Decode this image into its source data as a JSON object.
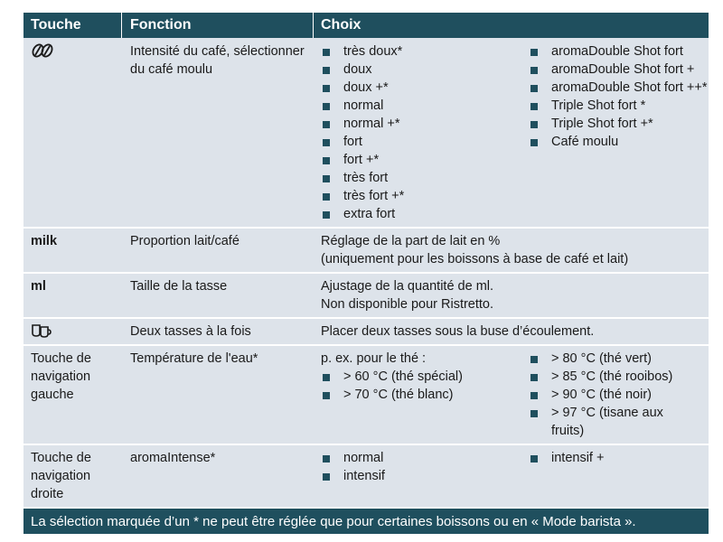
{
  "headers": {
    "key": "Touche",
    "function": "Fonction",
    "choice": "Choix"
  },
  "rows": {
    "strength": {
      "key_icon": "coffee-beans-icon",
      "function": "Intensité du café, sélectionner du café moulu",
      "choices_left": [
        "très doux*",
        "doux",
        "doux +*",
        "normal",
        "normal +*",
        "fort",
        "fort +*",
        "très fort",
        "très fort +*",
        "extra fort"
      ],
      "choices_right": [
        "aromaDouble Shot fort",
        "aromaDouble Shot fort +",
        "aromaDouble Shot fort ++*",
        "Triple Shot fort *",
        "Triple Shot fort +*",
        "Café moulu"
      ]
    },
    "milk": {
      "key": "milk",
      "function": "Proportion lait/café",
      "choice_line1": "Réglage de la part de lait en %",
      "choice_line2": "(uniquement pour les boissons à base de café et lait)"
    },
    "ml": {
      "key": "ml",
      "function": "Taille de la tasse",
      "choice_line1": "Ajustage de la quantité de ml.",
      "choice_line2": "Non disponible pour Ristretto."
    },
    "two_cups": {
      "key_icon": "two-cups-icon",
      "function": "Deux tasses à la fois",
      "choice": "Placer deux tasses sous la buse d’écoulement."
    },
    "nav_left": {
      "key": "Touche de navigation gauche",
      "function": "Température de l'eau*",
      "choice_intro": "p. ex. pour le thé :",
      "choices_left": [
        "> 60 °C (thé spécial)",
        "> 70 °C (thé blanc)"
      ],
      "choices_right": [
        "> 80 °C (thé vert)",
        "> 85 °C (thé rooibos)",
        "> 90 °C (thé noir)",
        "> 97 °C (tisane aux fruits)"
      ]
    },
    "nav_right": {
      "key": "Touche de navigation droite",
      "function": "aromaIntense*",
      "choices_left": [
        "normal",
        "intensif"
      ],
      "choices_right": [
        "intensif +"
      ]
    }
  },
  "footer": "La sélection marquée d’un * ne peut être réglée que pour certaines boissons ou en « Mode barista ».",
  "colors": {
    "header_bg": "#1f4f5e",
    "row_bg": "#dde3ea",
    "bullet": "#1f4f5e"
  }
}
